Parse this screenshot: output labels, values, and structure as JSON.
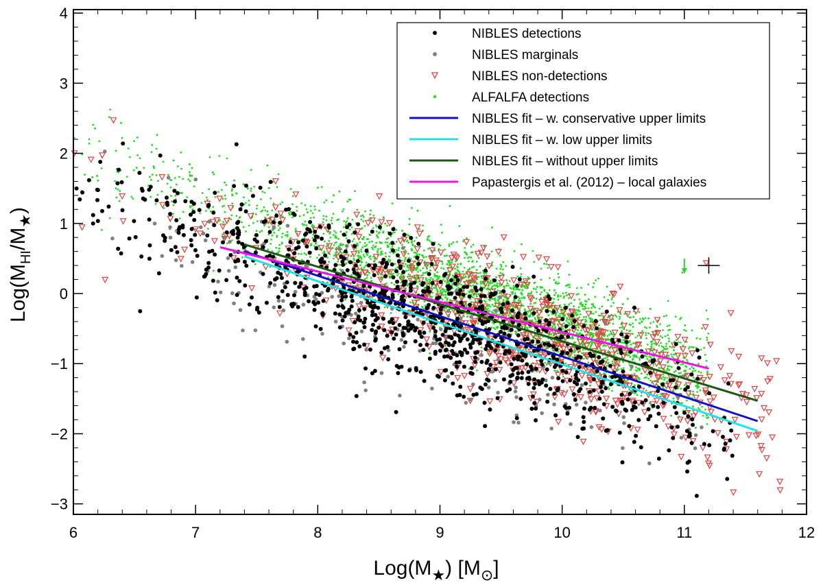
{
  "chart_data": {
    "type": "scatter",
    "xlabel": "Log(M★) [M⊙]",
    "ylabel": "Log(MHI/M★)",
    "xlim": [
      6,
      12
    ],
    "ylim": [
      -3.15,
      4.05
    ],
    "xticks": [
      6,
      7,
      8,
      9,
      10,
      11,
      12
    ],
    "yticks": [
      -3,
      -2,
      -1,
      0,
      1,
      2,
      3,
      4
    ],
    "xtick_labels": [
      "6",
      "7",
      "8",
      "9",
      "10",
      "11",
      "12"
    ],
    "ytick_labels": [
      "−3",
      "−2",
      "−1",
      "0",
      "1",
      "2",
      "3",
      "4"
    ],
    "scatter_series": [
      {
        "name": "NIBLES detections",
        "marker": "dot",
        "color": "#000000",
        "approx_count": 1100,
        "x_range": [
          6.0,
          11.4
        ]
      },
      {
        "name": "NIBLES marginals",
        "marker": "dot",
        "color": "#808080",
        "approx_count": 200,
        "x_range": [
          6.0,
          11.3
        ]
      },
      {
        "name": "NIBLES non-detections",
        "marker": "triangle-down",
        "color": "#e04040",
        "approx_count": 700,
        "x_range": [
          6.0,
          11.8
        ]
      },
      {
        "name": "ALFALFA detections",
        "marker": "small-dot",
        "color": "#22dd22",
        "approx_count": 4000,
        "x_range": [
          6.0,
          11.2
        ]
      }
    ],
    "fit_lines": [
      {
        "name": "NIBLES fit – w. conservative upper limits",
        "color": "#1010cc",
        "x": [
          7.4,
          11.6
        ],
        "y": [
          0.6,
          -1.82
        ]
      },
      {
        "name": "NIBLES fit – w. low upper limits",
        "color": "#22e0ee",
        "x": [
          7.4,
          11.6
        ],
        "y": [
          0.53,
          -1.96
        ]
      },
      {
        "name": "NIBLES fit – without upper limits",
        "color": "#1a5a10",
        "x": [
          7.4,
          11.6
        ],
        "y": [
          0.7,
          -1.53
        ]
      },
      {
        "name": "Papastergis et al. (2012) – local galaxies",
        "color": "#ee10ee",
        "x": [
          7.2,
          11.2
        ],
        "y": [
          0.66,
          -1.07
        ]
      }
    ],
    "annotations": [
      {
        "type": "upper-limit-arrow",
        "color": "#22dd22",
        "x": 11.0,
        "y": 0.4
      },
      {
        "type": "error-cross",
        "color": "#000000",
        "x": 11.2,
        "y": 0.4
      }
    ],
    "legend": {
      "placement": "top-right",
      "entries": [
        {
          "label": "NIBLES detections",
          "symbol": "dot",
          "color": "#000000"
        },
        {
          "label": "NIBLES marginals",
          "symbol": "dot",
          "color": "#808080"
        },
        {
          "label": "NIBLES non-detections",
          "symbol": "triangle-down",
          "color": "#e04040"
        },
        {
          "label": "ALFALFA detections",
          "symbol": "small-dot",
          "color": "#22dd22"
        },
        {
          "label": "NIBLES fit – w. conservative upper limits",
          "symbol": "line",
          "color": "#1010cc"
        },
        {
          "label": "NIBLES fit – w. low upper limits",
          "symbol": "line",
          "color": "#22e0ee"
        },
        {
          "label": "NIBLES fit – without upper limits",
          "symbol": "line",
          "color": "#1a5a10"
        },
        {
          "label": "Papastergis et al. (2012) – local galaxies",
          "symbol": "line",
          "color": "#ee10ee"
        }
      ]
    }
  }
}
